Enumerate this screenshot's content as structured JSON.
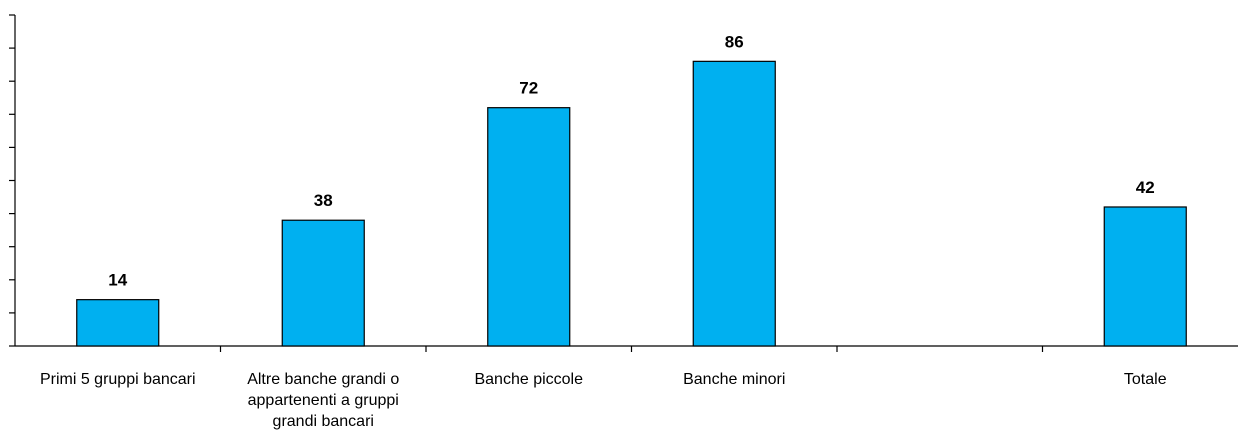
{
  "chart_data": {
    "type": "bar",
    "categories": [
      [
        "Primi 5 gruppi bancari"
      ],
      [
        "Altre banche grandi o",
        "appartenenti a gruppi",
        "grandi bancari"
      ],
      [
        "Banche piccole"
      ],
      [
        "Banche minori"
      ],
      [
        ""
      ],
      [
        "Totale"
      ]
    ],
    "values": [
      14,
      38,
      72,
      86,
      null,
      42
    ],
    "data_labels": [
      "14",
      "38",
      "72",
      "86",
      "",
      "42"
    ],
    "ylim": [
      0,
      100
    ],
    "ytick_step": 10,
    "y_tick_labels_shown": false,
    "grid": false,
    "bar_color": "#00B0F0",
    "bar_edge_color": "#000000",
    "title": "",
    "xlabel": "",
    "ylabel": ""
  }
}
